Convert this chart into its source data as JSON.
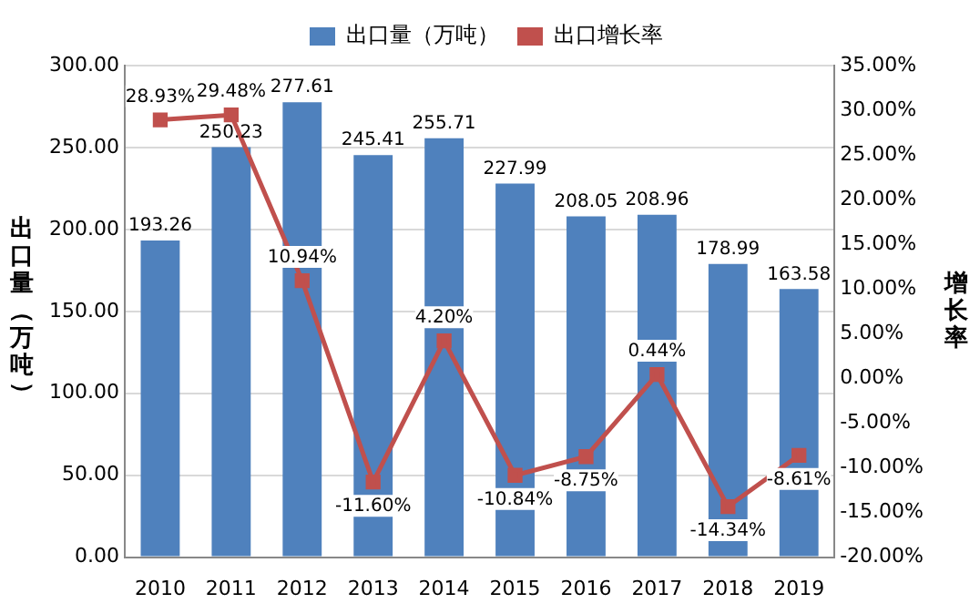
{
  "chart_data": {
    "type": "bar",
    "ylabel": "出口量（万吨）",
    "y2label": "增长率",
    "categories": [
      "2010",
      "2011",
      "2012",
      "2013",
      "2014",
      "2015",
      "2016",
      "2017",
      "2018",
      "2019"
    ],
    "series": [
      {
        "name": "出口量（万吨）",
        "color": "#4f81bd",
        "values": [
          193.26,
          250.23,
          277.61,
          245.41,
          255.71,
          227.99,
          208.05,
          208.96,
          178.99,
          163.58
        ],
        "value_labels": [
          "193.26",
          "250.23",
          "277.61",
          "245.41",
          "255.71",
          "227.99",
          "208.05",
          "208.96",
          "178.99",
          "163.58"
        ]
      },
      {
        "name": "出口增长率",
        "type": "line",
        "axis": "y2",
        "color": "#c0504d",
        "values": [
          28.93,
          29.48,
          10.94,
          -11.6,
          4.2,
          -10.84,
          -8.75,
          0.44,
          -14.34,
          -8.61
        ],
        "value_labels": [
          "28.93%",
          "29.48%",
          "10.94%",
          "-11.60%",
          "4.20%",
          "-10.84%",
          "-8.75%",
          "0.44%",
          "-14.34%",
          "-8.61%"
        ]
      }
    ],
    "ylim": [
      0,
      300
    ],
    "yticks": [
      {
        "value": 0,
        "label": "0.00"
      },
      {
        "value": 50,
        "label": "50.00"
      },
      {
        "value": 100,
        "label": "100.00"
      },
      {
        "value": 150,
        "label": "150.00"
      },
      {
        "value": 200,
        "label": "200.00"
      },
      {
        "value": 250,
        "label": "250.00"
      },
      {
        "value": 300,
        "label": "300.00"
      }
    ],
    "y2lim": [
      -20,
      35
    ],
    "y2ticks": [
      {
        "value": -20,
        "label": "-20.00%"
      },
      {
        "value": -15,
        "label": "-15.00%"
      },
      {
        "value": -10,
        "label": "-10.00%"
      },
      {
        "value": -5,
        "label": "-5.00%"
      },
      {
        "value": 0,
        "label": "0.00%"
      },
      {
        "value": 5,
        "label": "5.00%"
      },
      {
        "value": 10,
        "label": "10.00%"
      },
      {
        "value": 15,
        "label": "15.00%"
      },
      {
        "value": 20,
        "label": "20.00%"
      },
      {
        "value": 25,
        "label": "25.00%"
      },
      {
        "value": 30,
        "label": "30.00%"
      },
      {
        "value": 35,
        "label": "35.00%"
      }
    ],
    "grid": "y",
    "legend": "top",
    "marker": "square",
    "line_style": "solid"
  }
}
